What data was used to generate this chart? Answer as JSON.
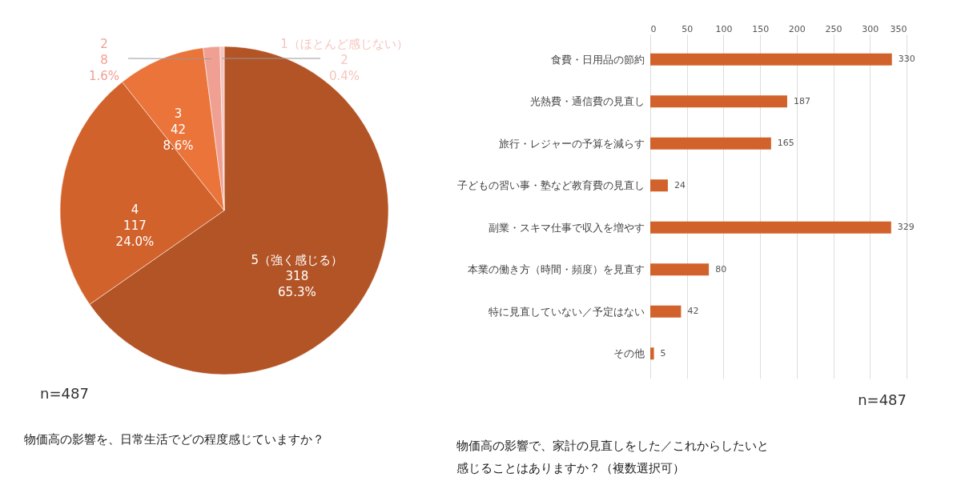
{
  "chart_data": [
    {
      "type": "pie",
      "title": "物価高の影響を、日常生活でどの程度感じていますか？",
      "categories": [
        "5（強く感じる）",
        "4",
        "3",
        "2",
        "1（ほとんど感じない）"
      ],
      "values": [
        318,
        117,
        42,
        8,
        2
      ],
      "colors": [
        "#b35426",
        "#d2622b",
        "#ea7439",
        "#f0a093",
        "#f5c5bd"
      ],
      "value_labels": [
        "318\n65.3%",
        "117\n24.0%",
        "42\n8.6%",
        "8\n1.6%",
        "2\n0.4%"
      ],
      "annotations": [
        "n=487"
      ]
    },
    {
      "type": "bar",
      "orientation": "horizontal",
      "title": "物価高の影響で、家計の見直しをした／これからしたいと感じることはありますか？（複数選択可）",
      "categories": [
        "食費・日用品の節約",
        "光熱費・通信費の見直し",
        "旅行・レジャーの予算を減らす",
        "子どもの習い事・塾など教育費の見直し",
        "副業・スキマ仕事で収入を増やす",
        "本業の働き方（時間・頻度）を見直す",
        "特に見直していない／予定はない",
        "その他"
      ],
      "values": [
        330,
        187,
        165,
        24,
        329,
        80,
        42,
        5
      ],
      "color": "#d2622b",
      "xlim": [
        0,
        350
      ],
      "xticks": [
        0,
        50,
        100,
        150,
        200,
        250,
        300,
        350
      ],
      "grid": "x",
      "data_labels": true,
      "annotations": [
        "n=487"
      ]
    }
  ]
}
